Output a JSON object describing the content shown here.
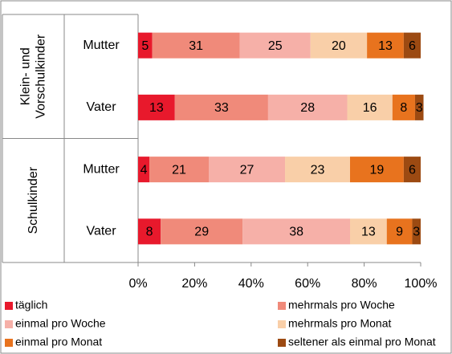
{
  "chart_data": {
    "type": "stacked_bar_horizontal",
    "categories": [
      "Mutter",
      "Vater",
      "Mutter",
      "Vater"
    ],
    "groups": [
      {
        "lines": [
          "Klein- und",
          "Vorschulkinder"
        ]
      },
      {
        "lines": [
          "Schulkinder"
        ]
      }
    ],
    "series": [
      {
        "name": "täglich",
        "color": "#e8192c",
        "values": [
          5,
          13,
          4,
          8
        ]
      },
      {
        "name": "mehrmals pro Woche",
        "color": "#f08a7a",
        "values": [
          31,
          33,
          21,
          29
        ]
      },
      {
        "name": "einmal pro Woche",
        "color": "#f6b0a8",
        "values": [
          25,
          28,
          27,
          38
        ]
      },
      {
        "name": "mehrmals pro Monat",
        "color": "#f9cfa8",
        "values": [
          20,
          16,
          23,
          13
        ]
      },
      {
        "name": "einmal pro Monat",
        "color": "#e8731e",
        "values": [
          13,
          8,
          19,
          9
        ]
      },
      {
        "name": "seltener als einmal pro Monat",
        "color": "#9c4a12",
        "values": [
          6,
          3,
          6,
          3
        ]
      }
    ],
    "xlim": [
      0,
      100
    ],
    "xticks": [
      {
        "value": 0,
        "label": "0%"
      },
      {
        "value": 20,
        "label": "20%"
      },
      {
        "value": 40,
        "label": "40%"
      },
      {
        "value": 60,
        "label": "60%"
      },
      {
        "value": 80,
        "label": "80%"
      },
      {
        "value": 100,
        "label": "100%"
      }
    ],
    "legend": "bottom"
  }
}
